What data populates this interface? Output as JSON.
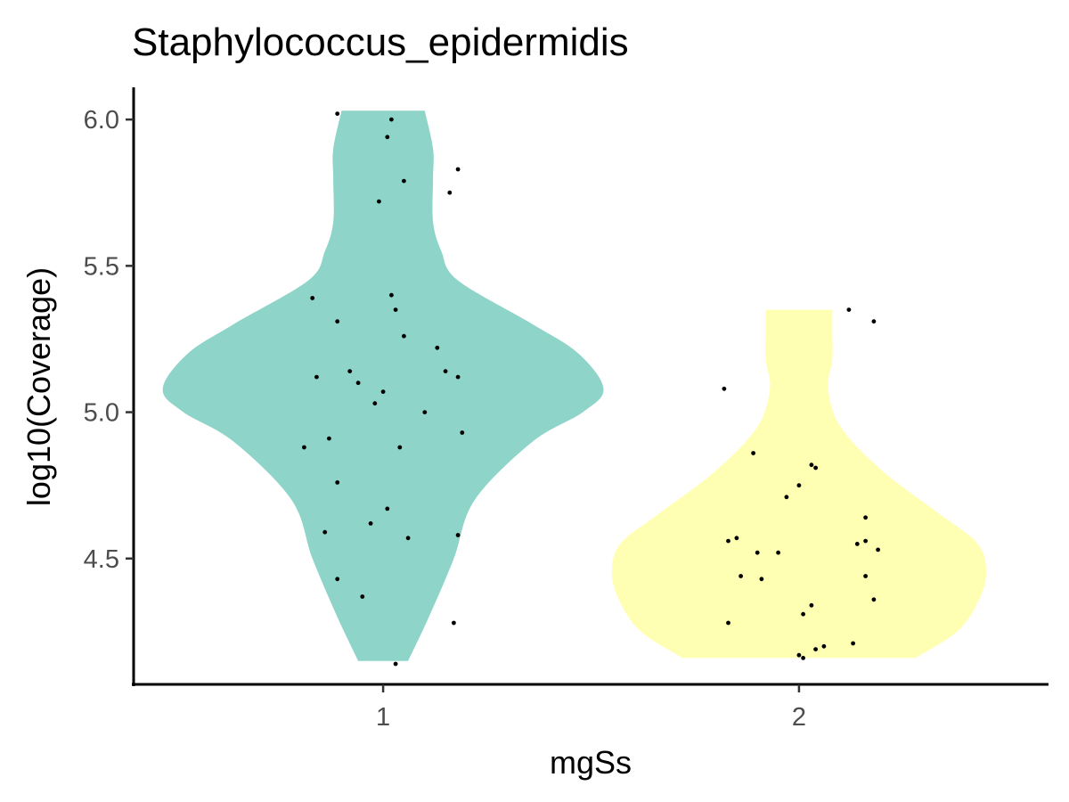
{
  "chart_data": {
    "type": "violin",
    "title": "Staphylococcus_epidermidis",
    "xlabel": "mgSs",
    "ylabel": "log10(Coverage)",
    "categories": [
      "1",
      "2"
    ],
    "ylim": [
      4.07,
      6.11
    ],
    "yticks": [
      4.5,
      5.0,
      5.5,
      6.0
    ],
    "ytick_labels": [
      "4.5",
      "5.0",
      "5.5",
      "6.0"
    ],
    "grid": false,
    "legend": "none",
    "fill_colors": [
      "#8ed4c8",
      "#ffffb3"
    ],
    "point_color": "#000000",
    "series": [
      {
        "category": "1",
        "fill": "#8ed4c8",
        "range": [
          4.15,
          6.03
        ],
        "density": [
          {
            "y": 4.15,
            "w": 0.06
          },
          {
            "y": 4.3,
            "w": 0.11
          },
          {
            "y": 4.5,
            "w": 0.17
          },
          {
            "y": 4.7,
            "w": 0.22
          },
          {
            "y": 4.9,
            "w": 0.36
          },
          {
            "y": 5.0,
            "w": 0.48
          },
          {
            "y": 5.08,
            "w": 0.53
          },
          {
            "y": 5.2,
            "w": 0.47
          },
          {
            "y": 5.3,
            "w": 0.36
          },
          {
            "y": 5.45,
            "w": 0.18
          },
          {
            "y": 5.55,
            "w": 0.14
          },
          {
            "y": 5.65,
            "w": 0.12
          },
          {
            "y": 5.8,
            "w": 0.12
          },
          {
            "y": 5.9,
            "w": 0.12
          },
          {
            "y": 6.03,
            "w": 0.1
          }
        ],
        "points": [
          {
            "dx": -0.11,
            "y": 6.02
          },
          {
            "dx": 0.02,
            "y": 6.0
          },
          {
            "dx": 0.01,
            "y": 5.94
          },
          {
            "dx": 0.18,
            "y": 5.83
          },
          {
            "dx": 0.05,
            "y": 5.79
          },
          {
            "dx": 0.16,
            "y": 5.75
          },
          {
            "dx": -0.01,
            "y": 5.72
          },
          {
            "dx": -0.17,
            "y": 5.39
          },
          {
            "dx": 0.02,
            "y": 5.4
          },
          {
            "dx": 0.03,
            "y": 5.35
          },
          {
            "dx": -0.11,
            "y": 5.31
          },
          {
            "dx": 0.05,
            "y": 5.26
          },
          {
            "dx": 0.13,
            "y": 5.22
          },
          {
            "dx": -0.08,
            "y": 5.14
          },
          {
            "dx": 0.15,
            "y": 5.14
          },
          {
            "dx": -0.16,
            "y": 5.12
          },
          {
            "dx": 0.18,
            "y": 5.12
          },
          {
            "dx": -0.06,
            "y": 5.1
          },
          {
            "dx": 0.0,
            "y": 5.07
          },
          {
            "dx": -0.02,
            "y": 5.03
          },
          {
            "dx": 0.1,
            "y": 5.0
          },
          {
            "dx": 0.19,
            "y": 4.93
          },
          {
            "dx": -0.13,
            "y": 4.91
          },
          {
            "dx": -0.19,
            "y": 4.88
          },
          {
            "dx": 0.04,
            "y": 4.88
          },
          {
            "dx": -0.11,
            "y": 4.76
          },
          {
            "dx": 0.01,
            "y": 4.67
          },
          {
            "dx": -0.03,
            "y": 4.62
          },
          {
            "dx": -0.14,
            "y": 4.59
          },
          {
            "dx": 0.18,
            "y": 4.58
          },
          {
            "dx": 0.06,
            "y": 4.57
          },
          {
            "dx": -0.11,
            "y": 4.43
          },
          {
            "dx": -0.05,
            "y": 4.37
          },
          {
            "dx": 0.17,
            "y": 4.28
          },
          {
            "dx": 0.03,
            "y": 4.14
          }
        ]
      },
      {
        "category": "2",
        "fill": "#ffffb3",
        "range": [
          4.16,
          5.35
        ],
        "density": [
          {
            "y": 4.16,
            "w": 0.28
          },
          {
            "y": 4.25,
            "w": 0.38
          },
          {
            "y": 4.35,
            "w": 0.43
          },
          {
            "y": 4.45,
            "w": 0.45
          },
          {
            "y": 4.55,
            "w": 0.43
          },
          {
            "y": 4.65,
            "w": 0.34
          },
          {
            "y": 4.8,
            "w": 0.2
          },
          {
            "y": 4.95,
            "w": 0.1
          },
          {
            "y": 5.08,
            "w": 0.07
          },
          {
            "y": 5.18,
            "w": 0.08
          },
          {
            "y": 5.28,
            "w": 0.08
          },
          {
            "y": 5.35,
            "w": 0.08
          }
        ],
        "points": [
          {
            "dx": 0.12,
            "y": 5.35
          },
          {
            "dx": 0.18,
            "y": 5.31
          },
          {
            "dx": -0.18,
            "y": 5.08
          },
          {
            "dx": -0.11,
            "y": 4.86
          },
          {
            "dx": 0.03,
            "y": 4.82
          },
          {
            "dx": 0.04,
            "y": 4.81
          },
          {
            "dx": 0.0,
            "y": 4.75
          },
          {
            "dx": -0.03,
            "y": 4.71
          },
          {
            "dx": 0.16,
            "y": 4.64
          },
          {
            "dx": -0.15,
            "y": 4.57
          },
          {
            "dx": -0.17,
            "y": 4.56
          },
          {
            "dx": 0.14,
            "y": 4.55
          },
          {
            "dx": 0.16,
            "y": 4.56
          },
          {
            "dx": 0.19,
            "y": 4.53
          },
          {
            "dx": -0.05,
            "y": 4.52
          },
          {
            "dx": -0.1,
            "y": 4.52
          },
          {
            "dx": -0.14,
            "y": 4.44
          },
          {
            "dx": -0.09,
            "y": 4.43
          },
          {
            "dx": 0.16,
            "y": 4.44
          },
          {
            "dx": 0.18,
            "y": 4.36
          },
          {
            "dx": 0.03,
            "y": 4.34
          },
          {
            "dx": 0.01,
            "y": 4.31
          },
          {
            "dx": -0.17,
            "y": 4.28
          },
          {
            "dx": 0.13,
            "y": 4.21
          },
          {
            "dx": 0.06,
            "y": 4.2
          },
          {
            "dx": 0.04,
            "y": 4.19
          },
          {
            "dx": 0.0,
            "y": 4.17
          },
          {
            "dx": 0.01,
            "y": 4.16
          }
        ]
      }
    ]
  }
}
